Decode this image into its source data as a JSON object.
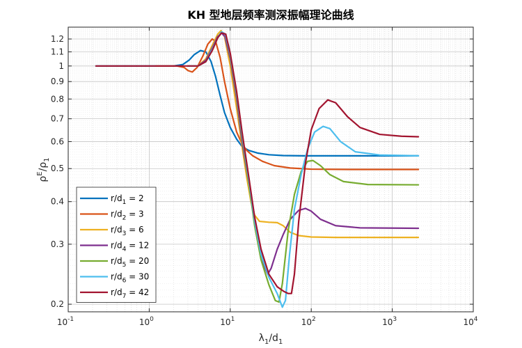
{
  "chart_data": {
    "type": "line",
    "title": "KH 型地层频率测深振幅理论曲线",
    "xlabel": "λ1/d1",
    "ylabel": "ρE/ρ1",
    "xscale": "log",
    "yscale": "log",
    "xlim": [
      0.1,
      10000
    ],
    "ylim": [
      0.19,
      1.3
    ],
    "grid": true,
    "minor_grid": true,
    "legend_position": "lower-left",
    "x_tick_labels": [
      "10",
      "10",
      "10",
      "10",
      "10",
      "10"
    ],
    "x_tick_exponents": [
      "-1",
      "0",
      "1",
      "2",
      "3",
      "4"
    ],
    "x_tick_values": [
      0.1,
      1,
      10,
      100,
      1000,
      10000
    ],
    "y_tick_values": [
      0.2,
      0.3,
      0.4,
      0.5,
      0.6,
      0.7,
      0.8,
      0.9,
      1,
      1.1,
      1.2
    ],
    "y_tick_labels": [
      "0.2",
      "0.3",
      "0.4",
      "0.5",
      "0.6",
      "0.7",
      "0.8",
      "0.9",
      "1",
      "1.1",
      "1.2"
    ],
    "series": [
      {
        "name": "r/d1 = 2",
        "legend_base": "r/d",
        "legend_sub": "1",
        "legend_tail": " = 2",
        "color": "#0072BD",
        "points": [
          [
            0.22,
            1.0
          ],
          [
            1.0,
            1.0
          ],
          [
            2.0,
            1.0
          ],
          [
            2.6,
            1.01
          ],
          [
            3.1,
            1.04
          ],
          [
            3.6,
            1.08
          ],
          [
            4.3,
            1.11
          ],
          [
            5.0,
            1.1
          ],
          [
            5.8,
            1.03
          ],
          [
            6.6,
            0.93
          ],
          [
            7.5,
            0.82
          ],
          [
            8.5,
            0.73
          ],
          [
            10,
            0.66
          ],
          [
            12,
            0.61
          ],
          [
            14,
            0.58
          ],
          [
            17,
            0.565
          ],
          [
            22,
            0.555
          ],
          [
            30,
            0.549
          ],
          [
            45,
            0.546
          ],
          [
            80,
            0.545
          ],
          [
            200,
            0.545
          ],
          [
            2100,
            0.545
          ]
        ]
      },
      {
        "name": "r/d2 = 3",
        "legend_base": "r/d",
        "legend_sub": "2",
        "legend_tail": " = 3",
        "color": "#D95319",
        "points": [
          [
            1.2,
            1.0
          ],
          [
            2.2,
            1.0
          ],
          [
            2.7,
            0.99
          ],
          [
            3.0,
            0.97
          ],
          [
            3.4,
            0.96
          ],
          [
            3.9,
            0.99
          ],
          [
            4.6,
            1.07
          ],
          [
            5.3,
            1.16
          ],
          [
            6.0,
            1.2
          ],
          [
            6.6,
            1.18
          ],
          [
            7.5,
            1.06
          ],
          [
            8.5,
            0.9
          ],
          [
            10,
            0.75
          ],
          [
            12,
            0.64
          ],
          [
            14,
            0.59
          ],
          [
            16,
            0.565
          ],
          [
            19,
            0.545
          ],
          [
            25,
            0.525
          ],
          [
            35,
            0.51
          ],
          [
            55,
            0.502
          ],
          [
            100,
            0.498
          ],
          [
            300,
            0.497
          ],
          [
            2100,
            0.497
          ]
        ]
      },
      {
        "name": "r/d3 = 6",
        "legend_base": "r/d",
        "legend_sub": "3",
        "legend_tail": " = 6",
        "color": "#EDB120",
        "points": [
          [
            3.0,
            1.0
          ],
          [
            4.0,
            1.0
          ],
          [
            5.0,
            1.05
          ],
          [
            6.0,
            1.15
          ],
          [
            7.0,
            1.24
          ],
          [
            7.7,
            1.27
          ],
          [
            8.5,
            1.22
          ],
          [
            10,
            1.0
          ],
          [
            12,
            0.75
          ],
          [
            14,
            0.58
          ],
          [
            16,
            0.47
          ],
          [
            18,
            0.4
          ],
          [
            20,
            0.365
          ],
          [
            23,
            0.35
          ],
          [
            30,
            0.348
          ],
          [
            38,
            0.347
          ],
          [
            45,
            0.34
          ],
          [
            55,
            0.325
          ],
          [
            70,
            0.318
          ],
          [
            100,
            0.315
          ],
          [
            200,
            0.314
          ],
          [
            2100,
            0.314
          ]
        ]
      },
      {
        "name": "r/d4 = 12",
        "legend_base": "r/d",
        "legend_sub": "4",
        "legend_tail": " = 12",
        "color": "#7E2F8E",
        "points": [
          [
            3.0,
            1.0
          ],
          [
            4.0,
            1.0
          ],
          [
            5.0,
            1.04
          ],
          [
            6.0,
            1.13
          ],
          [
            7.0,
            1.22
          ],
          [
            7.8,
            1.25
          ],
          [
            8.6,
            1.22
          ],
          [
            10,
            1.05
          ],
          [
            12,
            0.8
          ],
          [
            14,
            0.6
          ],
          [
            17,
            0.45
          ],
          [
            20,
            0.36
          ],
          [
            23,
            0.3
          ],
          [
            26,
            0.26
          ],
          [
            29,
            0.245
          ],
          [
            32,
            0.255
          ],
          [
            38,
            0.29
          ],
          [
            45,
            0.32
          ],
          [
            55,
            0.355
          ],
          [
            70,
            0.377
          ],
          [
            85,
            0.382
          ],
          [
            100,
            0.375
          ],
          [
            130,
            0.355
          ],
          [
            200,
            0.34
          ],
          [
            400,
            0.335
          ],
          [
            2100,
            0.334
          ]
        ]
      },
      {
        "name": "r/d5 = 20",
        "legend_base": "r/d",
        "legend_sub": "5",
        "legend_tail": " = 20",
        "color": "#77AC30",
        "points": [
          [
            3.0,
            1.0
          ],
          [
            4.0,
            1.0
          ],
          [
            5.0,
            1.03
          ],
          [
            6.0,
            1.12
          ],
          [
            7.0,
            1.21
          ],
          [
            7.8,
            1.26
          ],
          [
            8.7,
            1.24
          ],
          [
            10,
            1.07
          ],
          [
            12,
            0.82
          ],
          [
            14,
            0.62
          ],
          [
            17,
            0.45
          ],
          [
            20,
            0.34
          ],
          [
            24,
            0.27
          ],
          [
            30,
            0.228
          ],
          [
            36,
            0.205
          ],
          [
            40,
            0.203
          ],
          [
            44,
            0.23
          ],
          [
            52,
            0.33
          ],
          [
            62,
            0.42
          ],
          [
            75,
            0.49
          ],
          [
            90,
            0.525
          ],
          [
            105,
            0.528
          ],
          [
            130,
            0.51
          ],
          [
            170,
            0.48
          ],
          [
            250,
            0.458
          ],
          [
            500,
            0.449
          ],
          [
            2100,
            0.448
          ]
        ]
      },
      {
        "name": "r/d6 = 30",
        "legend_base": "r/d",
        "legend_sub": "6",
        "legend_tail": " = 30",
        "color": "#4DBEEE",
        "points": [
          [
            3.0,
            1.0
          ],
          [
            4.0,
            1.0
          ],
          [
            5.0,
            1.03
          ],
          [
            6.0,
            1.12
          ],
          [
            7.0,
            1.21
          ],
          [
            7.8,
            1.26
          ],
          [
            8.7,
            1.24
          ],
          [
            10,
            1.08
          ],
          [
            12,
            0.83
          ],
          [
            14,
            0.63
          ],
          [
            17,
            0.46
          ],
          [
            20,
            0.35
          ],
          [
            24,
            0.28
          ],
          [
            30,
            0.24
          ],
          [
            38,
            0.215
          ],
          [
            44,
            0.196
          ],
          [
            48,
            0.205
          ],
          [
            54,
            0.28
          ],
          [
            62,
            0.38
          ],
          [
            75,
            0.48
          ],
          [
            90,
            0.57
          ],
          [
            110,
            0.64
          ],
          [
            140,
            0.665
          ],
          [
            170,
            0.655
          ],
          [
            230,
            0.6
          ],
          [
            350,
            0.56
          ],
          [
            700,
            0.548
          ],
          [
            2100,
            0.545
          ]
        ]
      },
      {
        "name": "r/d7 = 42",
        "legend_base": "r/d",
        "legend_sub": "7",
        "legend_tail": " = 42",
        "color": "#A2142F",
        "points": [
          [
            0.22,
            1.0
          ],
          [
            2.0,
            1.0
          ],
          [
            3.0,
            1.0
          ],
          [
            4.0,
            1.0
          ],
          [
            5.0,
            1.03
          ],
          [
            6.0,
            1.11
          ],
          [
            7.0,
            1.21
          ],
          [
            7.8,
            1.25
          ],
          [
            8.8,
            1.24
          ],
          [
            10,
            1.09
          ],
          [
            12,
            0.84
          ],
          [
            14,
            0.64
          ],
          [
            17,
            0.47
          ],
          [
            20,
            0.36
          ],
          [
            24,
            0.29
          ],
          [
            30,
            0.245
          ],
          [
            38,
            0.225
          ],
          [
            46,
            0.218
          ],
          [
            52,
            0.215
          ],
          [
            57,
            0.215
          ],
          [
            62,
            0.245
          ],
          [
            70,
            0.35
          ],
          [
            85,
            0.52
          ],
          [
            100,
            0.65
          ],
          [
            125,
            0.75
          ],
          [
            160,
            0.795
          ],
          [
            200,
            0.78
          ],
          [
            280,
            0.71
          ],
          [
            400,
            0.66
          ],
          [
            700,
            0.63
          ],
          [
            1300,
            0.622
          ],
          [
            2100,
            0.62
          ]
        ]
      }
    ]
  }
}
